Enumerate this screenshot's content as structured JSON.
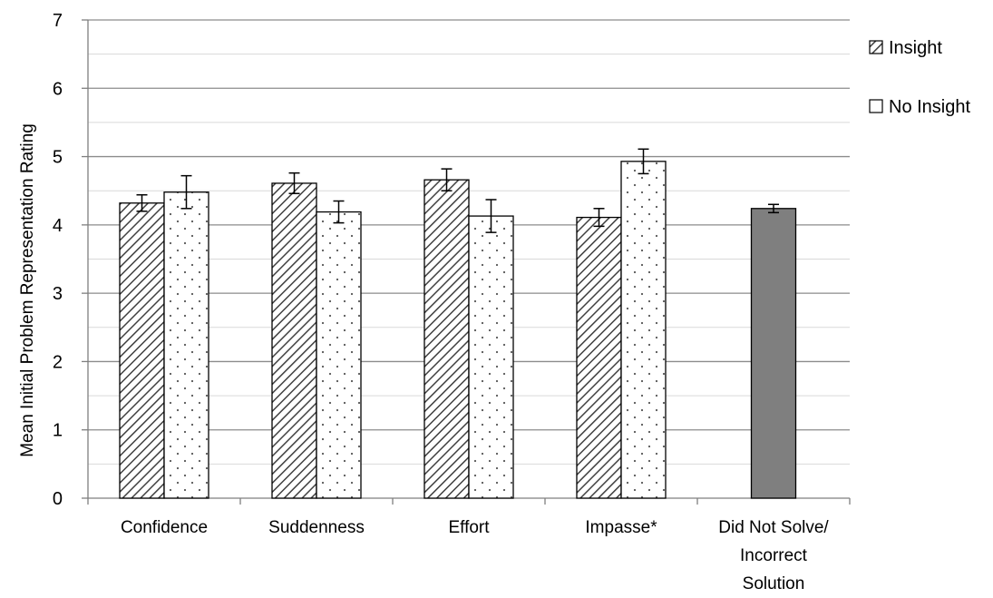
{
  "chart_data": {
    "type": "bar",
    "ylabel": "Mean Initial Problem Representation Rating",
    "ylim": [
      0,
      7
    ],
    "yticks": [
      0,
      1,
      2,
      3,
      4,
      5,
      6,
      7
    ],
    "grid": "horizontal major and minor",
    "legend_position": "right",
    "categories": [
      [
        "Confidence"
      ],
      [
        "Suddenness"
      ],
      [
        "Effort"
      ],
      [
        "Impasse*"
      ],
      [
        "Did Not Solve/",
        "Incorrect",
        "Solution"
      ]
    ],
    "series": [
      {
        "name": "Insight",
        "pattern": "diagonal-hatch",
        "values": [
          4.32,
          4.61,
          4.66,
          4.11,
          null
        ],
        "error": [
          0.12,
          0.15,
          0.16,
          0.13,
          null
        ]
      },
      {
        "name": "No Insight",
        "pattern": "dots",
        "values": [
          4.48,
          4.19,
          4.13,
          4.93,
          null
        ],
        "error": [
          0.24,
          0.16,
          0.24,
          0.18,
          null
        ]
      }
    ],
    "single_bars": [
      {
        "category_index": 4,
        "value": 4.24,
        "error": 0.06,
        "color": "#7f7f7f"
      }
    ]
  }
}
